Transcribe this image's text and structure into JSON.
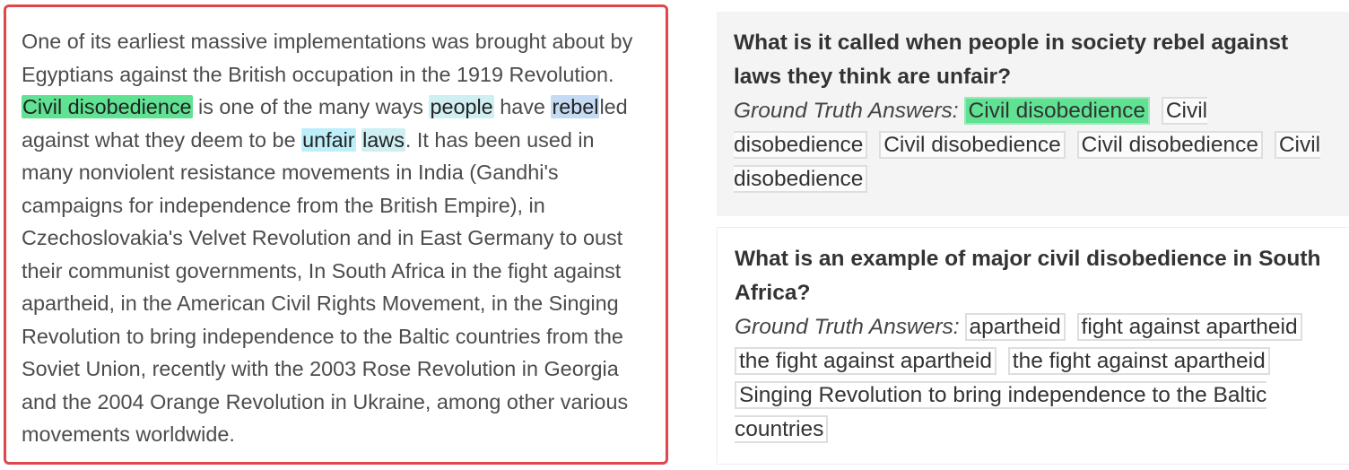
{
  "passage": {
    "segments": [
      {
        "text": "One of its earliest massive implementations was brought about by Egyptians against the British occupation in the 1919 Revolution. "
      },
      {
        "text": "Civil disobedience",
        "bg": "#5fe393"
      },
      {
        "text": " is one of the many ways "
      },
      {
        "text": "people",
        "bg": "#cfeff2"
      },
      {
        "text": " have "
      },
      {
        "text": "rebel",
        "bg": "#c4dbf3"
      },
      {
        "text": "led against what they deem to be "
      },
      {
        "text": "unfair",
        "bg": "#bdeefa"
      },
      {
        "text": " "
      },
      {
        "text": "laws",
        "bg": "#cfeff2"
      },
      {
        "text": ". It has been used in many nonviolent resistance movements in India (Gandhi's campaigns for independence from the British Empire), in Czechoslovakia's Velvet Revolution and in East Germany to oust their communist governments, In South Africa in the fight against apartheid, in the American Civil Rights Movement, in the Singing Revolution to bring independence to the Baltic countries from the Soviet Union, recently with the 2003 Rose Revolution in Georgia and the 2004 Orange Revolution in Ukraine, among other various movements worldwide."
      }
    ]
  },
  "questions": [
    {
      "question": "What is it called when people in society rebel against laws they think are unfair?",
      "answers_label": "Ground Truth Answers:",
      "answers": [
        {
          "text": "Civil disobedience",
          "highlight": true
        },
        {
          "text": "Civil disobedience",
          "highlight": false
        },
        {
          "text": "Civil disobedience",
          "highlight": false
        },
        {
          "text": "Civil disobedience",
          "highlight": false
        },
        {
          "text": "Civil disobedience",
          "highlight": false
        }
      ]
    },
    {
      "question": "What is an example of major civil disobedience in South Africa?",
      "answers_label": "Ground Truth Answers:",
      "answers": [
        {
          "text": "apartheid",
          "highlight": false
        },
        {
          "text": "fight against apartheid",
          "highlight": false
        },
        {
          "text": "the fight against apartheid",
          "highlight": false
        },
        {
          "text": "the fight against apartheid",
          "highlight": false
        },
        {
          "text": "Singing Revolution to bring independence to the Baltic countries",
          "highlight": false
        }
      ]
    }
  ],
  "colors": {
    "passage_border": "#e0474c",
    "answer_match": "#5fe393"
  }
}
